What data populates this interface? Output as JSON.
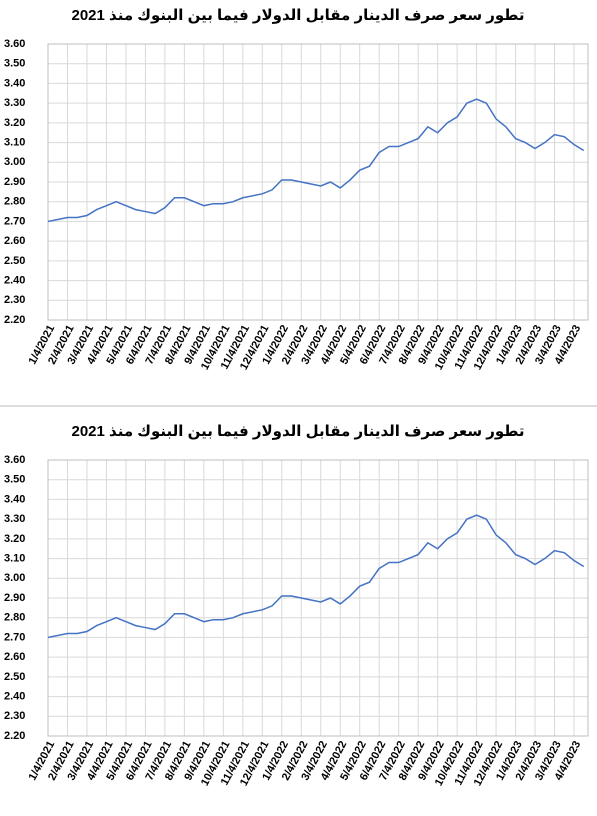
{
  "chart_data": [
    {
      "type": "line",
      "title": "تطور سعر صرف الدينار مقابل الدولار فيما بين البنوك منذ 2021",
      "categories": [
        "1/4/2021",
        null,
        "2/4/2021",
        null,
        "3/4/2021",
        null,
        "4/4/2021",
        null,
        "5/4/2021",
        null,
        "6/4/2021",
        null,
        "7/4/2021",
        null,
        "8/4/2021",
        null,
        "9/4/2021",
        null,
        "10/4/2021",
        null,
        "11/4/2021",
        null,
        "12/4/2021",
        null,
        "1/4/2022",
        null,
        "2/4/2022",
        null,
        "3/4/2022",
        null,
        "4/4/2022",
        null,
        "5/4/2022",
        null,
        "6/4/2022",
        null,
        "7/4/2022",
        null,
        "8/4/2022",
        null,
        "9/4/2022",
        null,
        "10/4/2022",
        null,
        "11/4/2022",
        null,
        "12/4/2022",
        null,
        "1/4/2023",
        null,
        "2/4/2023",
        null,
        "3/4/2023",
        null,
        "4/4/2023",
        null
      ],
      "series": [
        {
          "color": "#4472c4",
          "values": [
            2.7,
            2.71,
            2.72,
            2.72,
            2.73,
            2.76,
            2.78,
            2.8,
            2.78,
            2.76,
            2.75,
            2.74,
            2.77,
            2.82,
            2.82,
            2.8,
            2.78,
            2.79,
            2.79,
            2.8,
            2.82,
            2.83,
            2.84,
            2.86,
            2.91,
            2.91,
            2.9,
            2.89,
            2.88,
            2.9,
            2.87,
            2.91,
            2.96,
            2.98,
            3.05,
            3.08,
            3.08,
            3.1,
            3.12,
            3.18,
            3.15,
            3.2,
            3.23,
            3.3,
            3.32,
            3.3,
            3.22,
            3.18,
            3.12,
            3.1,
            3.07,
            3.1,
            3.14,
            3.13,
            3.09,
            3.06
          ]
        }
      ],
      "ylim": [
        2.2,
        3.6
      ],
      "yticks": [
        {
          "value": 2.2,
          "label": "2.20"
        },
        {
          "value": 2.3,
          "label": "2.30"
        },
        {
          "value": 2.4,
          "label": "2.40"
        },
        {
          "value": 2.5,
          "label": "2.50"
        },
        {
          "value": 2.6,
          "label": "2.60"
        },
        {
          "value": 2.7,
          "label": "2.70"
        },
        {
          "value": 2.8,
          "label": "2.80"
        },
        {
          "value": 2.9,
          "label": "2.90"
        },
        {
          "value": 3.0,
          "label": "3.00"
        },
        {
          "value": 3.1,
          "label": "3.10"
        },
        {
          "value": 3.2,
          "label": "3.20"
        },
        {
          "value": 3.3,
          "label": "3.30"
        },
        {
          "value": 3.4,
          "label": "3.40"
        },
        {
          "value": 3.5,
          "label": "3.50"
        },
        {
          "value": 3.6,
          "label": "3.60"
        }
      ],
      "grid": true
    },
    {
      "type": "line",
      "title": "تطور سعر صرف الدينار مقابل الدولار فيما بين البنوك منذ 2021",
      "categories": [
        "1/4/2021",
        null,
        "2/4/2021",
        null,
        "3/4/2021",
        null,
        "4/4/2021",
        null,
        "5/4/2021",
        null,
        "6/4/2021",
        null,
        "7/4/2021",
        null,
        "8/4/2021",
        null,
        "9/4/2021",
        null,
        "10/4/2021",
        null,
        "11/4/2021",
        null,
        "12/4/2021",
        null,
        "1/4/2022",
        null,
        "2/4/2022",
        null,
        "3/4/2022",
        null,
        "4/4/2022",
        null,
        "5/4/2022",
        null,
        "6/4/2022",
        null,
        "7/4/2022",
        null,
        "8/4/2022",
        null,
        "9/4/2022",
        null,
        "10/4/2022",
        null,
        "11/4/2022",
        null,
        "12/4/2022",
        null,
        "1/4/2023",
        null,
        "2/4/2023",
        null,
        "3/4/2023",
        null,
        "4/4/2023",
        null
      ],
      "series": [
        {
          "color": "#4472c4",
          "values": [
            2.7,
            2.71,
            2.72,
            2.72,
            2.73,
            2.76,
            2.78,
            2.8,
            2.78,
            2.76,
            2.75,
            2.74,
            2.77,
            2.82,
            2.82,
            2.8,
            2.78,
            2.79,
            2.79,
            2.8,
            2.82,
            2.83,
            2.84,
            2.86,
            2.91,
            2.91,
            2.9,
            2.89,
            2.88,
            2.9,
            2.87,
            2.91,
            2.96,
            2.98,
            3.05,
            3.08,
            3.08,
            3.1,
            3.12,
            3.18,
            3.15,
            3.2,
            3.23,
            3.3,
            3.32,
            3.3,
            3.22,
            3.18,
            3.12,
            3.1,
            3.07,
            3.1,
            3.14,
            3.13,
            3.09,
            3.06
          ]
        }
      ],
      "ylim": [
        2.2,
        3.6
      ],
      "yticks": [
        {
          "value": 2.2,
          "label": "2.20"
        },
        {
          "value": 2.3,
          "label": "2.30"
        },
        {
          "value": 2.4,
          "label": "2.40"
        },
        {
          "value": 2.5,
          "label": "2.50"
        },
        {
          "value": 2.6,
          "label": "2.60"
        },
        {
          "value": 2.7,
          "label": "2.70"
        },
        {
          "value": 2.8,
          "label": "2.80"
        },
        {
          "value": 2.9,
          "label": "2.90"
        },
        {
          "value": 3.0,
          "label": "3.00"
        },
        {
          "value": 3.1,
          "label": "3.10"
        },
        {
          "value": 3.2,
          "label": "3.20"
        },
        {
          "value": 3.3,
          "label": "3.30"
        },
        {
          "value": 3.4,
          "label": "3.40"
        },
        {
          "value": 3.5,
          "label": "3.50"
        },
        {
          "value": 3.6,
          "label": "3.60"
        }
      ],
      "grid": true
    }
  ]
}
